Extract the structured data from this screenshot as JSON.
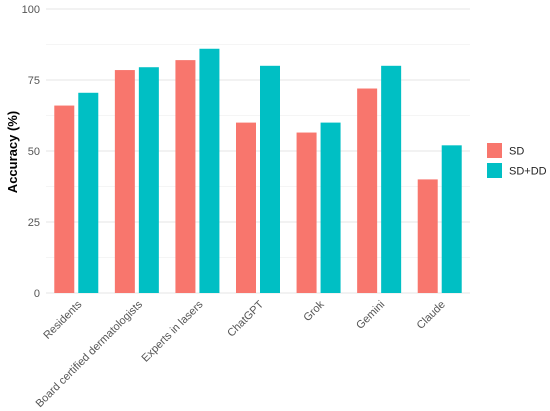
{
  "chart_data": {
    "type": "bar",
    "title": "",
    "xlabel": "",
    "ylabel": "Accuracy (%)",
    "ylim": [
      0,
      100
    ],
    "yticks": [
      0,
      25,
      50,
      75,
      100
    ],
    "grid": true,
    "legend_position": "right",
    "categories": [
      "Residents",
      "Board certified dermatologists",
      "Experts in lasers",
      "ChatGPT",
      "Grok",
      "Gemini",
      "Claude"
    ],
    "series": [
      {
        "name": "SD",
        "color": "#F8766D",
        "values": [
          66,
          78.5,
          82,
          60,
          56.5,
          72,
          40
        ]
      },
      {
        "name": "SD+DD",
        "color": "#00BFC4",
        "values": [
          70.5,
          79.5,
          86,
          80,
          60,
          80,
          52
        ]
      }
    ]
  }
}
